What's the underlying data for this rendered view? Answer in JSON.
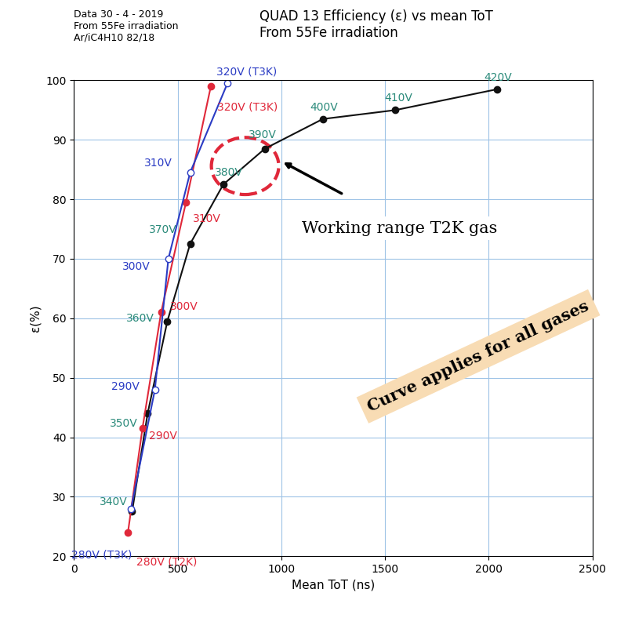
{
  "chart_data": {
    "type": "line",
    "title": "QUAD 13 Efficiency (ε) vs mean ToT\nFrom 55Fe irradiation",
    "subtitle": "Data 30 - 4 - 2019\nFrom 55Fe irradiation\nAr/iC4H10 82/18",
    "x_label": "Mean ToT (ns)",
    "y_label": "ε(%)",
    "xlim": [
      0,
      2500
    ],
    "xticks": [
      0,
      500,
      1000,
      1500,
      2000,
      2500
    ],
    "ylim": [
      20,
      100
    ],
    "yticks": [
      20,
      30,
      40,
      50,
      60,
      70,
      80,
      90,
      100
    ],
    "grid": true,
    "series": [
      {
        "color": "#111111",
        "marker": "o",
        "x": [
          280,
          355,
          450,
          560,
          720,
          920,
          1200,
          1550,
          2040
        ],
        "values": [
          27.5,
          44,
          59.5,
          72.5,
          82.5,
          88.5,
          93.5,
          95,
          98.5
        ],
        "value_labels": [
          "340V",
          "350V",
          "360V",
          "370V",
          "380V",
          "390V",
          "400V",
          "410V",
          "420V"
        ]
      },
      {
        "color": "#e0283a",
        "marker": "o",
        "x": [
          260,
          330,
          420,
          540,
          660
        ],
        "values": [
          24,
          41.5,
          61,
          79.5,
          99
        ],
        "value_labels": [
          "280V (T2K)",
          "290V",
          "300V",
          "310V",
          "320V (T3K)"
        ]
      },
      {
        "color": "#2b3cc4",
        "marker": "o",
        "x": [
          275,
          390,
          455,
          560,
          740
        ],
        "values": [
          28,
          48,
          70,
          84.5,
          99.5
        ],
        "value_labels": [
          "280V (T3K)",
          "290V",
          "300V",
          "310V",
          "320V (T3K)"
        ]
      }
    ],
    "annotations": [
      "Working range T2K gas",
      "Curve applies for all gases"
    ]
  }
}
